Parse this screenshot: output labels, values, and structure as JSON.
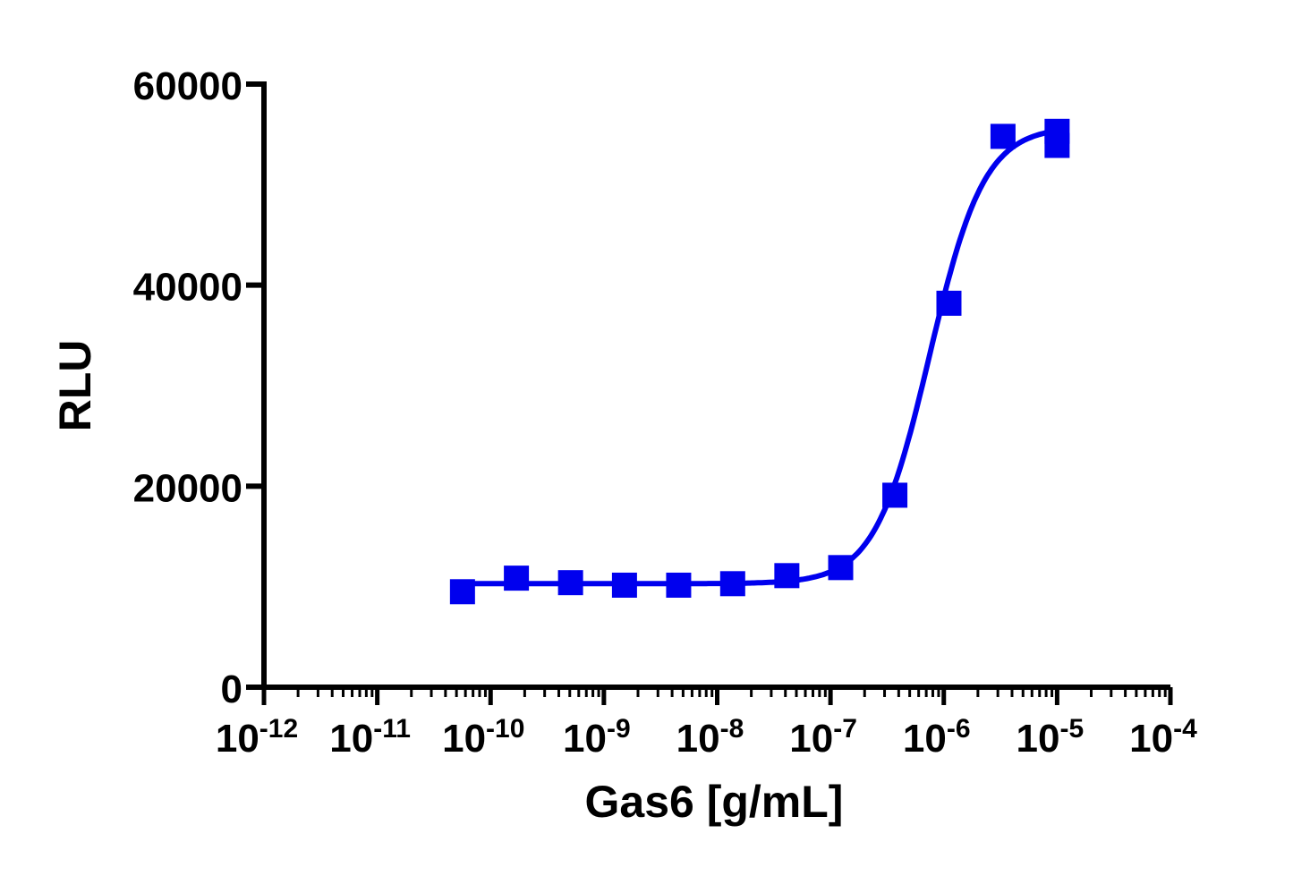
{
  "chart_data": {
    "type": "scatter",
    "title": "",
    "xlabel": "Gas6 [g/mL]",
    "ylabel": "RLU",
    "xscale": "log",
    "xlim": [
      1e-12,
      0.0001
    ],
    "ylim": [
      0,
      60000
    ],
    "x_ticks": [
      {
        "base": "10",
        "exp": "-12"
      },
      {
        "base": "10",
        "exp": "-11"
      },
      {
        "base": "10",
        "exp": "-10"
      },
      {
        "base": "10",
        "exp": "-9"
      },
      {
        "base": "10",
        "exp": "-8"
      },
      {
        "base": "10",
        "exp": "-7"
      },
      {
        "base": "10",
        "exp": "-6"
      },
      {
        "base": "10",
        "exp": "-5"
      },
      {
        "base": "10",
        "exp": "-4"
      }
    ],
    "y_ticks": [
      "0",
      "20000",
      "40000",
      "60000"
    ],
    "grid": false,
    "legend": "none",
    "color": "#0000ee",
    "marker": "square",
    "points": [
      {
        "x": 5.65e-11,
        "y": 9500
      },
      {
        "x": 1.69e-10,
        "y": 10850
      },
      {
        "x": 5.08e-10,
        "y": 10400
      },
      {
        "x": 1.52e-09,
        "y": 10150
      },
      {
        "x": 4.57e-09,
        "y": 10150
      },
      {
        "x": 1.37e-08,
        "y": 10300
      },
      {
        "x": 4.12e-08,
        "y": 11100
      },
      {
        "x": 1.23e-07,
        "y": 11900
      },
      {
        "x": 3.7e-07,
        "y": 19100
      },
      {
        "x": 1.11e-06,
        "y": 38200
      },
      {
        "x": 3.33e-06,
        "y": 54800
      },
      {
        "x": 1e-05,
        "y": 55300
      },
      {
        "x": 1e-05,
        "y": 53900
      }
    ],
    "fit": {
      "model": "4PL",
      "bottom": 10300,
      "top": 55800,
      "ec50": 7.5e-07,
      "hill": 1.8
    }
  }
}
